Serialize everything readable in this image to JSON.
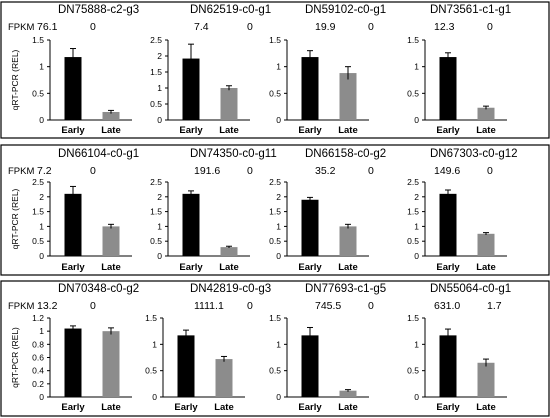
{
  "fpkm_label": "FPKM",
  "y_axis_label": "qRT-PCR (REL)",
  "colors": {
    "early_bar": "#000000",
    "late_bar": "#8c8c8c",
    "axis": "#000000",
    "panel_border": "#000000"
  },
  "chart_data": [
    {
      "type": "bar",
      "title": "DN75888-c2-g3",
      "fpkm": [
        "76.1",
        "0"
      ],
      "categories": [
        "Early",
        "Late"
      ],
      "values": [
        1.18,
        0.15
      ],
      "errors": [
        0.16,
        0.03
      ],
      "ylim": [
        0,
        1.5
      ],
      "yticks": [
        "0",
        "0.5",
        "1",
        "1.5"
      ]
    },
    {
      "type": "bar",
      "title": "DN62519-c0-g1",
      "fpkm": [
        "7.4",
        "0"
      ],
      "categories": [
        "Early",
        "Late"
      ],
      "values": [
        1.92,
        1.0
      ],
      "errors": [
        0.45,
        0.07
      ],
      "ylim": [
        0,
        2.5
      ],
      "yticks": [
        "0",
        "0.5",
        "1",
        "1.5",
        "2",
        "2.5"
      ]
    },
    {
      "type": "bar",
      "title": "DN59102-c0-g1",
      "fpkm": [
        "19.9",
        "0"
      ],
      "categories": [
        "Early",
        "Late"
      ],
      "values": [
        1.18,
        0.88
      ],
      "errors": [
        0.12,
        0.12
      ],
      "ylim": [
        0,
        1.5
      ],
      "yticks": [
        "0",
        "0.5",
        "1",
        "1.5"
      ]
    },
    {
      "type": "bar",
      "title": "DN73561-c1-g1",
      "fpkm": [
        "12.3",
        "0"
      ],
      "categories": [
        "Early",
        "Late"
      ],
      "values": [
        1.18,
        0.23
      ],
      "errors": [
        0.08,
        0.03
      ],
      "ylim": [
        0,
        1.5
      ],
      "yticks": [
        "0",
        "0.5",
        "1",
        "1.5"
      ]
    },
    {
      "type": "bar",
      "title": "DN66104-c0-g1",
      "fpkm": [
        "7.2",
        "0"
      ],
      "categories": [
        "Early",
        "Late"
      ],
      "values": [
        2.1,
        1.0
      ],
      "errors": [
        0.25,
        0.07
      ],
      "ylim": [
        0,
        2.5
      ],
      "yticks": [
        "0",
        "0.5",
        "1",
        "1.5",
        "2",
        "2.5"
      ]
    },
    {
      "type": "bar",
      "title": "DN74350-c0-g11",
      "fpkm": [
        "191.6",
        "0"
      ],
      "categories": [
        "Early",
        "Late"
      ],
      "values": [
        2.1,
        0.3
      ],
      "errors": [
        0.1,
        0.03
      ],
      "ylim": [
        0,
        2.5
      ],
      "yticks": [
        "0",
        "0.5",
        "1",
        "1.5",
        "2",
        "2.5"
      ]
    },
    {
      "type": "bar",
      "title": "DN66158-c0-g2",
      "fpkm": [
        "35.2",
        "0"
      ],
      "categories": [
        "Early",
        "Late"
      ],
      "values": [
        1.9,
        1.0
      ],
      "errors": [
        0.08,
        0.07
      ],
      "ylim": [
        0,
        2.5
      ],
      "yticks": [
        "0",
        "0.5",
        "1",
        "1.5",
        "2",
        "2.5"
      ]
    },
    {
      "type": "bar",
      "title": "DN67303-c0-g12",
      "fpkm": [
        "149.6",
        "0"
      ],
      "categories": [
        "Early",
        "Late"
      ],
      "values": [
        2.1,
        0.75
      ],
      "errors": [
        0.13,
        0.04
      ],
      "ylim": [
        0,
        2.5
      ],
      "yticks": [
        "0",
        "0.5",
        "1",
        "1.5",
        "2",
        "2.5"
      ]
    },
    {
      "type": "bar",
      "title": "DN70348-c0-g2",
      "fpkm": [
        "13.2",
        "0"
      ],
      "categories": [
        "Early",
        "Late"
      ],
      "values": [
        1.04,
        1.0
      ],
      "errors": [
        0.04,
        0.05
      ],
      "ylim": [
        0,
        1.2
      ],
      "yticks": [
        "0",
        "0.2",
        "0.4",
        "0.6",
        "0.8",
        "1",
        "1.2"
      ]
    },
    {
      "type": "bar",
      "title": "DN42819-c0-g3",
      "fpkm": [
        "1111.1",
        "0"
      ],
      "categories": [
        "Early",
        "Late"
      ],
      "values": [
        1.17,
        0.72
      ],
      "errors": [
        0.1,
        0.05
      ],
      "ylim": [
        0,
        1.5
      ],
      "yticks": [
        "0",
        "0.5",
        "1",
        "1.5"
      ]
    },
    {
      "type": "bar",
      "title": "DN77693-c1-g5",
      "fpkm": [
        "745.5",
        "0"
      ],
      "categories": [
        "Early",
        "Late"
      ],
      "values": [
        1.17,
        0.12
      ],
      "errors": [
        0.15,
        0.02
      ],
      "ylim": [
        0,
        1.5
      ],
      "yticks": [
        "0",
        "0.5",
        "1",
        "1.5"
      ]
    },
    {
      "type": "bar",
      "title": "DN55064-c0-g1",
      "fpkm": [
        "631.0",
        "1.7"
      ],
      "categories": [
        "Early",
        "Late"
      ],
      "values": [
        1.17,
        0.65
      ],
      "errors": [
        0.12,
        0.07
      ],
      "ylim": [
        0,
        1.5
      ],
      "yticks": [
        "0",
        "0.5",
        "1",
        "1.5"
      ]
    }
  ]
}
